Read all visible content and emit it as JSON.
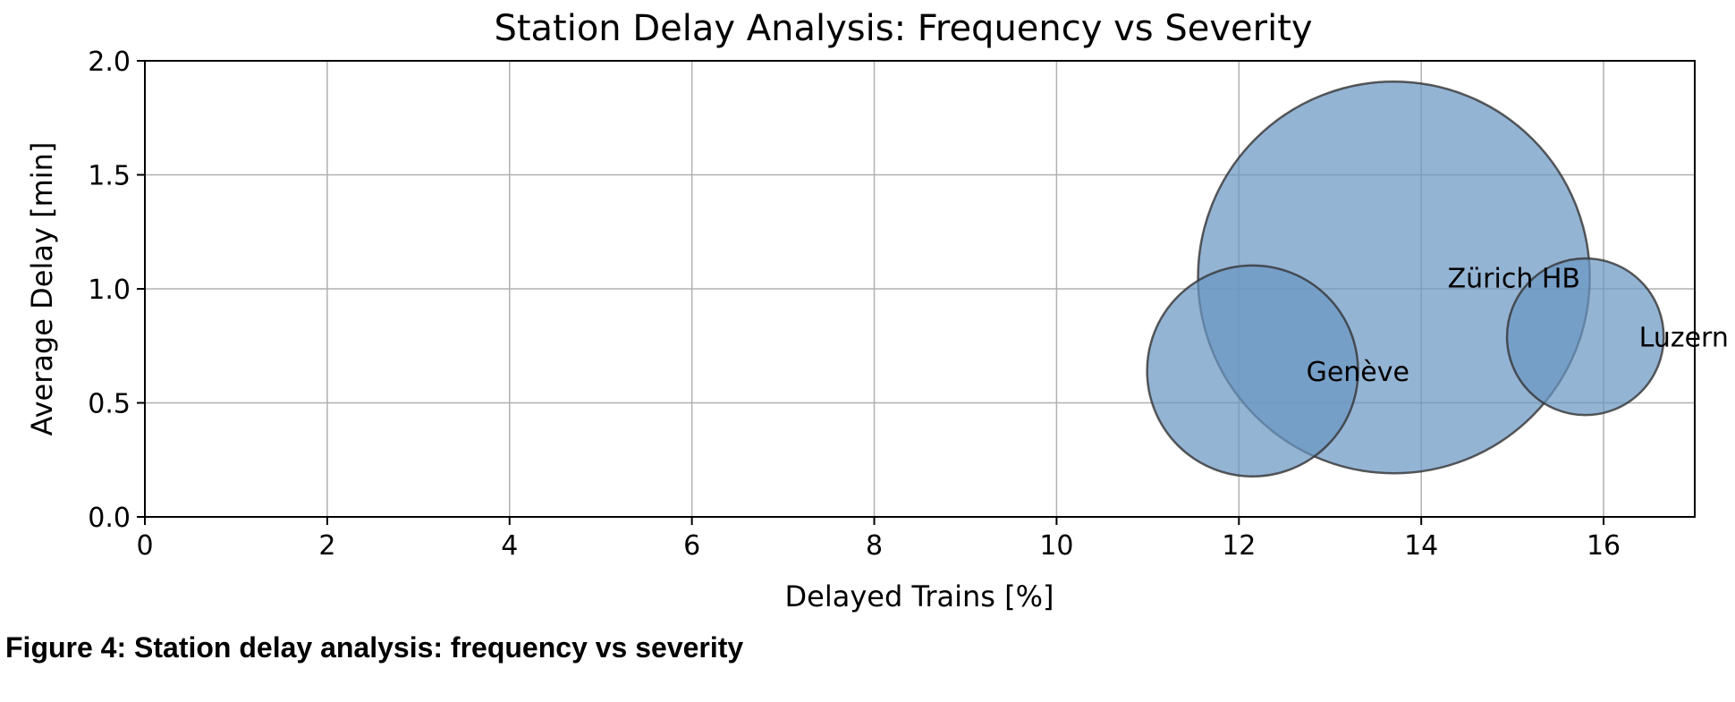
{
  "caption": "Figure 4: Station delay analysis: frequency vs severity",
  "colors": {
    "bubble_fill": "#6b97c4",
    "bubble_edge": "#333333",
    "grid": "#b0b0b0"
  },
  "chart_data": {
    "type": "scatter",
    "title": "Station Delay Analysis: Frequency vs Severity",
    "xlabel": "Delayed Trains [%]",
    "ylabel": "Average Delay [min]",
    "xlim": [
      0,
      17
    ],
    "ylim": [
      0,
      2.0
    ],
    "xticks": [
      "0",
      "2",
      "4",
      "6",
      "8",
      "10",
      "12",
      "14",
      "16"
    ],
    "yticks": [
      "0.0",
      "0.5",
      "1.0",
      "1.5",
      "2.0"
    ],
    "grid": true,
    "points": [
      {
        "label": "Zürich HB",
        "x": 13.7,
        "y": 1.05,
        "size": 1.0
      },
      {
        "label": "Genève",
        "x": 12.15,
        "y": 0.64,
        "size": 0.29
      },
      {
        "label": "Luzern",
        "x": 15.8,
        "y": 0.79,
        "size": 0.16
      }
    ]
  }
}
